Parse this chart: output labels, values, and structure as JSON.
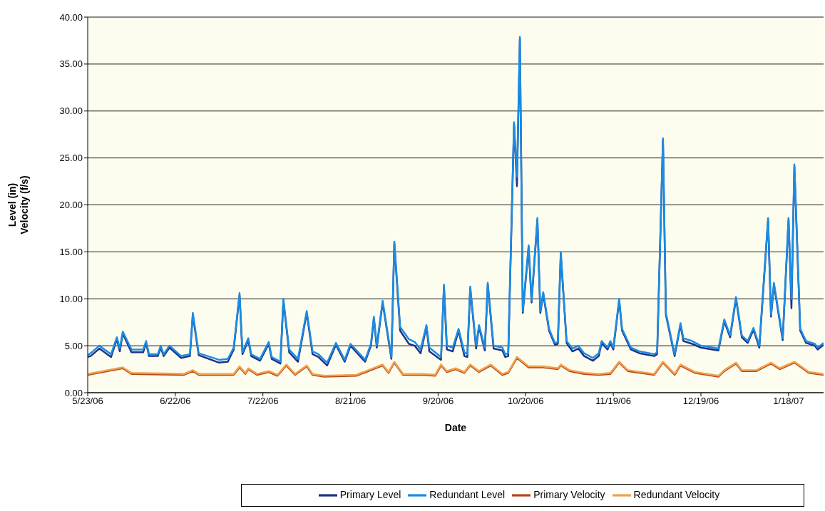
{
  "chart_data": {
    "type": "line",
    "xlabel": "Date",
    "ylabel": "Level (in)\nVelocity (f/s)",
    "xlim": [
      "2006-05-23",
      "2007-01-30"
    ],
    "xticks": [
      {
        "value": "2006-05-23",
        "label": "5/23/06"
      },
      {
        "value": "2006-06-22",
        "label": "6/22/06"
      },
      {
        "value": "2006-07-22",
        "label": "7/22/06"
      },
      {
        "value": "2006-08-21",
        "label": "8/21/06"
      },
      {
        "value": "2006-09-20",
        "label": "9/20/06"
      },
      {
        "value": "2006-10-20",
        "label": "10/20/06"
      },
      {
        "value": "2006-11-19",
        "label": "11/19/06"
      },
      {
        "value": "2006-12-19",
        "label": "12/19/06"
      },
      {
        "value": "2007-01-18",
        "label": "1/18/07"
      }
    ],
    "ylim": [
      0,
      40
    ],
    "yticks": [
      {
        "value": 0,
        "label": "0.00"
      },
      {
        "value": 5,
        "label": "5.00"
      },
      {
        "value": 10,
        "label": "10.00"
      },
      {
        "value": 15,
        "label": "15.00"
      },
      {
        "value": 20,
        "label": "20.00"
      },
      {
        "value": 25,
        "label": "25.00"
      },
      {
        "value": 30,
        "label": "30.00"
      },
      {
        "value": 35,
        "label": "35.00"
      },
      {
        "value": 40,
        "label": "40.00"
      }
    ],
    "grid": "y",
    "legend": "bottom",
    "marker": "none",
    "line_style": "solid",
    "series": [
      {
        "name": "Primary Level",
        "color": "#1f3288",
        "x": [
          "2006-05-23",
          "2006-05-24",
          "2006-05-27",
          "2006-05-31",
          "2006-06-02",
          "2006-06-03",
          "2006-06-04",
          "2006-06-07",
          "2006-06-11",
          "2006-06-12",
          "2006-06-13",
          "2006-06-16",
          "2006-06-17",
          "2006-06-18",
          "2006-06-20",
          "2006-06-24",
          "2006-06-27",
          "2006-06-28",
          "2006-06-30",
          "2006-07-07",
          "2006-07-10",
          "2006-07-12",
          "2006-07-14",
          "2006-07-15",
          "2006-07-17",
          "2006-07-18",
          "2006-07-21",
          "2006-07-24",
          "2006-07-25",
          "2006-07-28",
          "2006-07-29",
          "2006-07-31",
          "2006-08-03",
          "2006-08-06",
          "2006-08-08",
          "2006-08-10",
          "2006-08-13",
          "2006-08-16",
          "2006-08-19",
          "2006-08-21",
          "2006-08-26",
          "2006-08-28",
          "2006-08-29",
          "2006-08-30",
          "2006-09-01",
          "2006-09-04",
          "2006-09-05",
          "2006-09-07",
          "2006-09-10",
          "2006-09-12",
          "2006-09-14",
          "2006-09-16",
          "2006-09-17",
          "2006-09-21",
          "2006-09-22",
          "2006-09-23",
          "2006-09-25",
          "2006-09-27",
          "2006-09-29",
          "2006-09-30",
          "2006-10-01",
          "2006-10-03",
          "2006-10-04",
          "2006-10-06",
          "2006-10-07",
          "2006-10-09",
          "2006-10-12",
          "2006-10-13",
          "2006-10-14",
          "2006-10-16",
          "2006-10-17",
          "2006-10-18",
          "2006-10-19",
          "2006-10-21",
          "2006-10-22",
          "2006-10-24",
          "2006-10-25",
          "2006-10-26",
          "2006-10-28",
          "2006-10-30",
          "2006-10-31",
          "2006-11-01",
          "2006-11-03",
          "2006-11-05",
          "2006-11-07",
          "2006-11-09",
          "2006-11-12",
          "2006-11-14",
          "2006-11-15",
          "2006-11-17",
          "2006-11-18",
          "2006-11-19",
          "2006-11-21",
          "2006-11-22",
          "2006-11-25",
          "2006-11-28",
          "2006-12-03",
          "2006-12-04",
          "2006-12-06",
          "2006-12-07",
          "2006-12-10",
          "2006-12-12",
          "2006-12-13",
          "2006-12-16",
          "2006-12-19",
          "2006-12-23",
          "2006-12-25",
          "2006-12-27",
          "2006-12-29",
          "2006-12-31",
          "2007-01-02",
          "2007-01-04",
          "2007-01-06",
          "2007-01-08",
          "2007-01-11",
          "2007-01-12",
          "2007-01-13",
          "2007-01-16",
          "2007-01-18",
          "2007-01-19",
          "2007-01-20",
          "2007-01-22",
          "2007-01-24",
          "2007-01-27",
          "2007-01-28",
          "2007-01-30"
        ],
        "values": [
          3.8,
          3.9,
          4.7,
          3.8,
          5.7,
          4.4,
          6.3,
          4.3,
          4.3,
          5.3,
          3.9,
          3.9,
          4.8,
          3.9,
          4.8,
          3.7,
          3.9,
          8.3,
          4.0,
          3.2,
          3.3,
          4.6,
          10.4,
          4.1,
          5.6,
          3.9,
          3.4,
          5.2,
          3.6,
          3.1,
          9.8,
          4.3,
          3.3,
          8.5,
          4.1,
          3.8,
          2.9,
          5.1,
          3.3,
          5.0,
          3.3,
          5.0,
          7.9,
          4.8,
          9.6,
          3.6,
          15.9,
          6.6,
          5.2,
          5.0,
          4.2,
          7.0,
          4.4,
          3.5,
          11.3,
          4.6,
          4.4,
          6.6,
          3.9,
          3.8,
          11.1,
          4.7,
          7.0,
          4.5,
          11.5,
          4.7,
          4.5,
          3.8,
          3.9,
          28.6,
          22.0,
          37.7,
          8.5,
          15.5,
          9.6,
          18.4,
          8.5,
          10.5,
          6.6,
          5.1,
          5.2,
          14.8,
          5.3,
          4.4,
          4.7,
          3.9,
          3.4,
          3.9,
          5.3,
          4.6,
          5.3,
          4.6,
          9.8,
          6.6,
          4.6,
          4.2,
          3.9,
          4.1,
          26.9,
          8.3,
          3.9,
          7.2,
          5.5,
          5.2,
          4.8,
          4.6,
          4.5,
          7.6,
          5.9,
          10.0,
          5.9,
          5.3,
          6.7,
          4.8,
          18.4,
          8.1,
          11.5,
          5.6,
          18.4,
          9.0,
          24.1,
          6.6,
          5.3,
          5.0,
          4.6,
          5.1
        ]
      },
      {
        "name": "Redundant Level",
        "color": "#1c8ce3",
        "x": [
          "2006-05-23",
          "2006-05-24",
          "2006-05-27",
          "2006-05-31",
          "2006-06-02",
          "2006-06-03",
          "2006-06-04",
          "2006-06-07",
          "2006-06-11",
          "2006-06-12",
          "2006-06-13",
          "2006-06-16",
          "2006-06-17",
          "2006-06-18",
          "2006-06-20",
          "2006-06-24",
          "2006-06-27",
          "2006-06-28",
          "2006-06-30",
          "2006-07-07",
          "2006-07-10",
          "2006-07-12",
          "2006-07-14",
          "2006-07-15",
          "2006-07-17",
          "2006-07-18",
          "2006-07-21",
          "2006-07-24",
          "2006-07-25",
          "2006-07-28",
          "2006-07-29",
          "2006-07-31",
          "2006-08-03",
          "2006-08-06",
          "2006-08-08",
          "2006-08-10",
          "2006-08-13",
          "2006-08-16",
          "2006-08-19",
          "2006-08-21",
          "2006-08-26",
          "2006-08-28",
          "2006-08-29",
          "2006-08-30",
          "2006-09-01",
          "2006-09-04",
          "2006-09-05",
          "2006-09-07",
          "2006-09-10",
          "2006-09-12",
          "2006-09-14",
          "2006-09-16",
          "2006-09-17",
          "2006-09-21",
          "2006-09-22",
          "2006-09-23",
          "2006-09-25",
          "2006-09-27",
          "2006-09-29",
          "2006-09-30",
          "2006-10-01",
          "2006-10-03",
          "2006-10-04",
          "2006-10-06",
          "2006-10-07",
          "2006-10-09",
          "2006-10-12",
          "2006-10-13",
          "2006-10-14",
          "2006-10-16",
          "2006-10-17",
          "2006-10-18",
          "2006-10-19",
          "2006-10-21",
          "2006-10-22",
          "2006-10-24",
          "2006-10-25",
          "2006-10-26",
          "2006-10-28",
          "2006-10-30",
          "2006-10-31",
          "2006-11-01",
          "2006-11-03",
          "2006-11-05",
          "2006-11-07",
          "2006-11-09",
          "2006-11-12",
          "2006-11-14",
          "2006-11-15",
          "2006-11-17",
          "2006-11-18",
          "2006-11-19",
          "2006-11-21",
          "2006-11-22",
          "2006-11-25",
          "2006-11-28",
          "2006-12-03",
          "2006-12-04",
          "2006-12-06",
          "2006-12-07",
          "2006-12-10",
          "2006-12-12",
          "2006-12-13",
          "2006-12-16",
          "2006-12-19",
          "2006-12-23",
          "2006-12-25",
          "2006-12-27",
          "2006-12-29",
          "2006-12-31",
          "2007-01-02",
          "2007-01-04",
          "2007-01-06",
          "2007-01-08",
          "2007-01-11",
          "2007-01-12",
          "2007-01-13",
          "2007-01-16",
          "2007-01-18",
          "2007-01-19",
          "2007-01-20",
          "2007-01-22",
          "2007-01-24",
          "2007-01-27",
          "2007-01-28",
          "2007-01-30"
        ],
        "values": [
          4.0,
          4.2,
          5.0,
          4.1,
          5.9,
          4.7,
          6.5,
          4.6,
          4.6,
          5.5,
          4.1,
          4.1,
          5.0,
          4.1,
          5.0,
          3.9,
          4.1,
          8.5,
          4.2,
          3.5,
          3.6,
          4.8,
          10.6,
          4.3,
          5.8,
          4.1,
          3.6,
          5.4,
          3.8,
          3.3,
          10.0,
          4.6,
          3.6,
          8.7,
          4.4,
          4.1,
          3.2,
          5.3,
          3.5,
          5.2,
          3.5,
          5.2,
          8.1,
          5.0,
          9.8,
          3.8,
          16.1,
          7.0,
          5.7,
          5.4,
          4.6,
          7.2,
          4.8,
          3.8,
          11.5,
          5.0,
          4.8,
          6.8,
          4.3,
          4.1,
          11.3,
          5.0,
          7.2,
          4.8,
          11.7,
          5.0,
          4.8,
          4.1,
          4.2,
          28.8,
          23.0,
          37.9,
          8.7,
          15.7,
          9.8,
          18.6,
          8.7,
          10.7,
          6.8,
          5.3,
          5.4,
          15.0,
          5.5,
          4.7,
          5.0,
          4.2,
          3.7,
          4.2,
          5.5,
          4.8,
          5.5,
          4.8,
          10.0,
          6.8,
          4.8,
          4.4,
          4.1,
          4.3,
          27.1,
          8.5,
          4.1,
          7.4,
          5.8,
          5.5,
          5.0,
          4.8,
          4.7,
          7.8,
          6.1,
          10.2,
          6.1,
          5.5,
          6.9,
          5.0,
          18.6,
          8.3,
          11.7,
          5.8,
          18.6,
          10.0,
          24.3,
          6.8,
          5.5,
          5.2,
          4.8,
          5.3
        ]
      },
      {
        "name": "Primary Velocity",
        "color": "#b4461c",
        "x": [
          "2006-05-23",
          "2006-06-04",
          "2006-06-07",
          "2006-06-25",
          "2006-06-28",
          "2006-06-30",
          "2006-07-12",
          "2006-07-14",
          "2006-07-16",
          "2006-07-17",
          "2006-07-20",
          "2006-07-24",
          "2006-07-27",
          "2006-07-30",
          "2006-08-02",
          "2006-08-06",
          "2006-08-08",
          "2006-08-12",
          "2006-08-23",
          "2006-09-01",
          "2006-09-03",
          "2006-09-05",
          "2006-09-08",
          "2006-09-15",
          "2006-09-19",
          "2006-09-21",
          "2006-09-23",
          "2006-09-26",
          "2006-09-29",
          "2006-10-01",
          "2006-10-04",
          "2006-10-08",
          "2006-10-12",
          "2006-10-14",
          "2006-10-17",
          "2006-10-21",
          "2006-10-26",
          "2006-10-31",
          "2006-11-01",
          "2006-11-04",
          "2006-11-09",
          "2006-11-14",
          "2006-11-18",
          "2006-11-21",
          "2006-11-24",
          "2006-12-03",
          "2006-12-06",
          "2006-12-10",
          "2006-12-12",
          "2006-12-17",
          "2006-12-25",
          "2006-12-27",
          "2006-12-31",
          "2007-01-02",
          "2007-01-07",
          "2007-01-12",
          "2007-01-15",
          "2007-01-20",
          "2007-01-25",
          "2007-01-30"
        ],
        "values": [
          1.9,
          2.6,
          2.0,
          1.9,
          2.3,
          1.9,
          1.9,
          2.7,
          2.0,
          2.5,
          1.9,
          2.2,
          1.8,
          2.9,
          1.9,
          2.8,
          1.9,
          1.7,
          1.8,
          2.9,
          2.1,
          3.2,
          1.9,
          1.9,
          1.8,
          2.9,
          2.2,
          2.5,
          2.1,
          2.9,
          2.2,
          2.9,
          1.9,
          2.1,
          3.7,
          2.7,
          2.7,
          2.5,
          2.9,
          2.3,
          2.0,
          1.9,
          2.0,
          3.2,
          2.3,
          1.9,
          3.2,
          1.9,
          2.9,
          2.1,
          1.7,
          2.3,
          3.1,
          2.3,
          2.3,
          3.1,
          2.5,
          3.2,
          2.1,
          1.9
        ]
      },
      {
        "name": "Redundant Velocity",
        "color": "#f0a04c",
        "x": [
          "2006-05-23",
          "2006-06-04",
          "2006-06-07",
          "2006-06-25",
          "2006-06-28",
          "2006-06-30",
          "2006-07-12",
          "2006-07-14",
          "2006-07-16",
          "2006-07-17",
          "2006-07-20",
          "2006-07-24",
          "2006-07-27",
          "2006-07-30",
          "2006-08-02",
          "2006-08-06",
          "2006-08-08",
          "2006-08-12",
          "2006-08-23",
          "2006-09-01",
          "2006-09-03",
          "2006-09-05",
          "2006-09-08",
          "2006-09-15",
          "2006-09-19",
          "2006-09-21",
          "2006-09-23",
          "2006-09-26",
          "2006-09-29",
          "2006-10-01",
          "2006-10-04",
          "2006-10-08",
          "2006-10-12",
          "2006-10-14",
          "2006-10-17",
          "2006-10-21",
          "2006-10-26",
          "2006-10-31",
          "2006-11-01",
          "2006-11-04",
          "2006-11-09",
          "2006-11-14",
          "2006-11-18",
          "2006-11-21",
          "2006-11-24",
          "2006-12-03",
          "2006-12-06",
          "2006-12-10",
          "2006-12-12",
          "2006-12-17",
          "2006-12-25",
          "2006-12-27",
          "2006-12-31",
          "2007-01-02",
          "2007-01-07",
          "2007-01-12",
          "2007-01-15",
          "2007-01-20",
          "2007-01-25",
          "2007-01-30"
        ],
        "values": [
          2.0,
          2.7,
          2.1,
          2.0,
          2.4,
          2.0,
          2.0,
          2.8,
          2.1,
          2.6,
          2.0,
          2.3,
          1.9,
          3.0,
          2.0,
          2.9,
          2.0,
          1.8,
          1.9,
          3.0,
          2.2,
          3.3,
          2.0,
          2.0,
          1.9,
          3.0,
          2.3,
          2.6,
          2.2,
          3.0,
          2.3,
          3.0,
          2.0,
          2.2,
          3.8,
          2.8,
          2.8,
          2.6,
          3.0,
          2.4,
          2.1,
          2.0,
          2.1,
          3.3,
          2.4,
          2.0,
          3.3,
          2.0,
          3.0,
          2.2,
          1.8,
          2.4,
          3.2,
          2.4,
          2.4,
          3.2,
          2.6,
          3.3,
          2.2,
          2.0
        ]
      }
    ]
  }
}
